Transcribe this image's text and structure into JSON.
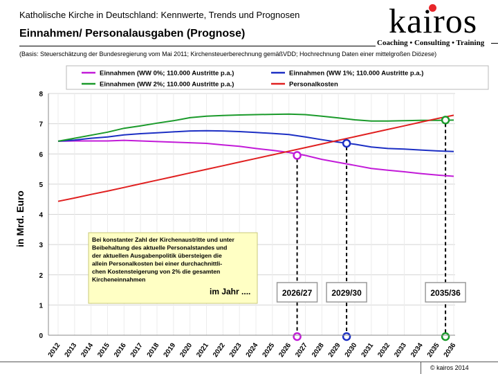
{
  "header": {
    "subtitle": "Katholische Kirche in Deutschland: Kennwerte, Trends und Prognosen",
    "title": "Einnahmen/ Personalausgaben (Prognose)",
    "basis": "(Basis: Steuerschätzung der Bundesregierung vom Mai 2011; Kirchensteuerberechnung gemäßVDD; Hochrechnung Daten einer mittelgroßen Diözese)"
  },
  "logo": {
    "text": "kairos",
    "tagline": "Coaching • Consulting • Training",
    "accent": "#e8262a"
  },
  "footer": {
    "copyright": "© kairos 2014"
  },
  "chart_data": {
    "type": "line",
    "ylabel": "in Mrd. Euro",
    "ylim": [
      0,
      8
    ],
    "yticks": [
      "0",
      "1",
      "2",
      "3",
      "4",
      "5",
      "6",
      "7",
      "8"
    ],
    "categories": [
      "2012",
      "2013",
      "2014",
      "2015",
      "2016",
      "2017",
      "2018",
      "2019",
      "2020",
      "2021",
      "2022",
      "2023",
      "2024",
      "2025",
      "2026",
      "2027",
      "2028",
      "2029",
      "2030",
      "2031",
      "2032",
      "2033",
      "2034",
      "2035",
      "2036"
    ],
    "series": [
      {
        "name": "Einnahmen (WW 0%; 110.000 Austritte p.a.)",
        "color": "#c21ad8",
        "values": [
          6.42,
          6.43,
          6.43,
          6.43,
          6.45,
          6.43,
          6.41,
          6.39,
          6.37,
          6.35,
          6.3,
          6.25,
          6.18,
          6.12,
          6.05,
          5.95,
          5.82,
          5.72,
          5.62,
          5.52,
          5.46,
          5.41,
          5.35,
          5.3,
          5.26
        ]
      },
      {
        "name": "Einnahmen (WW 1%; 110.000 Austritte p.a.)",
        "color": "#1c2fc4",
        "values": [
          6.42,
          6.46,
          6.52,
          6.56,
          6.63,
          6.67,
          6.7,
          6.73,
          6.76,
          6.77,
          6.76,
          6.74,
          6.71,
          6.68,
          6.64,
          6.56,
          6.47,
          6.39,
          6.32,
          6.23,
          6.18,
          6.16,
          6.13,
          6.1,
          6.08
        ]
      },
      {
        "name": "Einnahmen (WW 2%; 110.000 Austritte p.a.)",
        "color": "#1a9a2a",
        "values": [
          6.42,
          6.52,
          6.62,
          6.72,
          6.85,
          6.93,
          7.02,
          7.1,
          7.2,
          7.25,
          7.27,
          7.29,
          7.3,
          7.31,
          7.32,
          7.3,
          7.25,
          7.19,
          7.13,
          7.09,
          7.09,
          7.1,
          7.11,
          7.11,
          7.12
        ]
      },
      {
        "name": "Personalkosten",
        "color": "#e02020",
        "values": [
          4.43,
          4.54,
          4.66,
          4.77,
          4.89,
          5.01,
          5.13,
          5.25,
          5.37,
          5.49,
          5.61,
          5.73,
          5.85,
          5.97,
          6.09,
          6.21,
          6.33,
          6.45,
          6.57,
          6.69,
          6.81,
          6.93,
          7.05,
          7.17,
          7.28
        ]
      }
    ],
    "markers": [
      {
        "year": "2026/27",
        "x": 14.5,
        "value": 5.95,
        "color": "#c21ad8"
      },
      {
        "year": "2029/30",
        "x": 17.5,
        "value": 6.35,
        "color": "#1c2fc4"
      },
      {
        "year": "2035/36",
        "x": 23.5,
        "value": 7.12,
        "color": "#1a9a2a"
      }
    ],
    "year_boxes": [
      "2026/27",
      "2029/30",
      "2035/36"
    ],
    "note": {
      "lines": [
        "Bei konstanter Zahl der Kirchenaustritte und unter",
        "Beibehaltung des aktuelle Personalstandes und",
        "der aktuellen Ausgabenpolitik übersteigen die",
        "allein Personalkosten bei einer durchachnittli-",
        "chen Kostensteigerung von 2% die gesamten",
        "Kircheneinnahmen"
      ],
      "tail": "im Jahr ...."
    }
  }
}
